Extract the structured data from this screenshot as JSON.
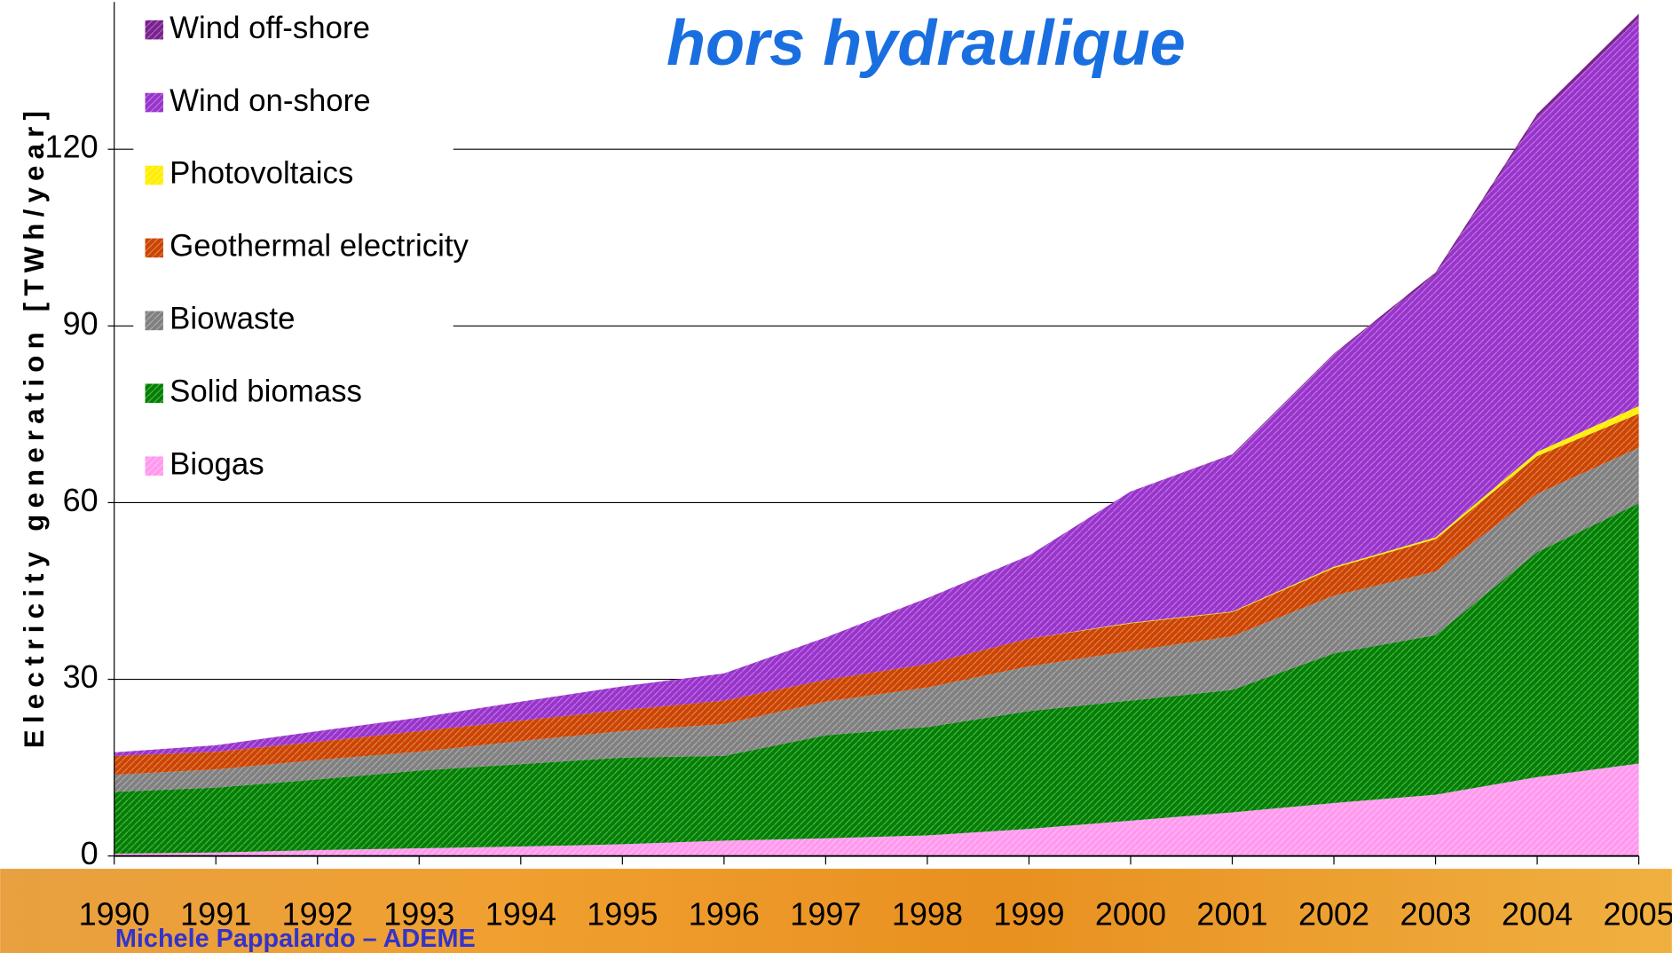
{
  "chart_data": {
    "type": "stacked-area",
    "title": "hors hydraulique",
    "y_label": "Electricity generation [TWh/year]",
    "footer": "Michele Pappalardo – ADEME",
    "categories": [
      "1990",
      "1991",
      "1992",
      "1993",
      "1994",
      "1995",
      "1996",
      "1997",
      "1998",
      "1999",
      "2000",
      "2001",
      "2002",
      "2003",
      "2004",
      "2005"
    ],
    "series": [
      {
        "name": "Biogas",
        "color": "#ff99ee",
        "values": [
          0.4,
          0.6,
          1.0,
          1.3,
          1.6,
          2.0,
          2.6,
          3.0,
          3.5,
          4.6,
          6.0,
          7.4,
          9.0,
          10.4,
          13.4,
          15.7
        ]
      },
      {
        "name": "Solid biomass",
        "color": "#008000",
        "values": [
          10.5,
          11.0,
          12.0,
          13.2,
          14.0,
          14.7,
          14.4,
          17.5,
          18.4,
          20.0,
          20.4,
          20.8,
          25.4,
          27.1,
          38.2,
          44.2
        ]
      },
      {
        "name": "Biowaste",
        "color": "#808080",
        "values": [
          2.9,
          3.1,
          3.3,
          3.2,
          3.9,
          4.5,
          5.4,
          5.7,
          6.7,
          7.6,
          8.4,
          9.1,
          9.8,
          10.8,
          9.9,
          9.4
        ]
      },
      {
        "name": "Geothermal electricity",
        "color": "#cc4400",
        "values": [
          3.2,
          3.0,
          3.1,
          3.5,
          3.5,
          3.6,
          4.0,
          3.7,
          4.0,
          4.7,
          4.7,
          4.1,
          4.7,
          5.5,
          6.4,
          5.8
        ]
      },
      {
        "name": "Photovoltaics",
        "color": "#ffee00",
        "values": [
          0,
          0,
          0,
          0,
          0,
          0,
          0,
          0,
          0,
          0,
          0.1,
          0.1,
          0.2,
          0.3,
          0.7,
          1.3
        ]
      },
      {
        "name": "Wind on-shore",
        "color": "#9933cc",
        "values": [
          0.6,
          1.1,
          1.8,
          2.3,
          3.2,
          4.0,
          4.6,
          7.2,
          11.2,
          14.1,
          22.3,
          26.6,
          36.0,
          44.5,
          56.8,
          65.7
        ]
      },
      {
        "name": "Wind off-shore",
        "color": "#7a2090",
        "values": [
          0,
          0,
          0,
          0,
          0,
          0,
          0,
          0,
          0,
          0,
          0,
          0.1,
          0.2,
          0.5,
          0.6,
          0.9
        ]
      }
    ],
    "ylim": [
      0,
      145
    ],
    "yticks": [
      0,
      30,
      60,
      90,
      120
    ],
    "grid": true,
    "legend": "upper left"
  }
}
